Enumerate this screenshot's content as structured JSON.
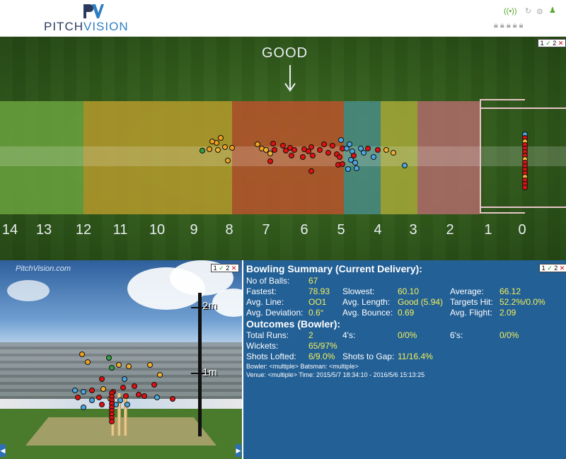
{
  "header": {
    "logo_mark": "PV",
    "logo_text_a": "PITCH",
    "logo_text_b": "VISION"
  },
  "pitch_view": {
    "good_label": "GOOD",
    "length_numbers": [
      "14",
      "13",
      "12",
      "11",
      "10",
      "9",
      "8",
      "7",
      "6",
      "5",
      "4",
      "3",
      "2",
      "1",
      "0"
    ],
    "zone_colors": [
      "#6aa23d",
      "#b59a2c",
      "#b8532c",
      "#4a8c86",
      "#a6a838",
      "#b06b6a"
    ],
    "view_controls": [
      "1",
      "✓",
      "2",
      "✕"
    ]
  },
  "stumps_view": {
    "watermark": "PitchVision.com",
    "height_labels": [
      "2m",
      "1m"
    ],
    "view_controls": [
      "1",
      "✓",
      "2",
      "✕"
    ]
  },
  "summary": {
    "title": "Bowling Summary (Current Delivery):",
    "view_controls": [
      "1",
      "✓",
      "2",
      "✕"
    ],
    "no_of_balls_label": "No of Balls:",
    "no_of_balls": "67",
    "fastest_label": "Fastest:",
    "fastest": "78.93",
    "slowest_label": "Slowest:",
    "slowest": "60.10",
    "average_label": "Average:",
    "average": "66.12",
    "avg_line_label": "Avg. Line:",
    "avg_line": "OO1",
    "avg_length_label": "Avg. Length:",
    "avg_length": "Good (5.94)",
    "targets_hit_label": "Targets Hit:",
    "targets_hit": "52.2%/0.0%",
    "avg_deviation_label": "Avg. Deviation:",
    "avg_deviation": "0.6°",
    "avg_bounce_label": "Avg. Bounce:",
    "avg_bounce": "0.69",
    "avg_flight_label": "Avg. Flight:",
    "avg_flight": "2.09",
    "outcomes_title": "Outcomes (Bowler):",
    "total_runs_label": "Total Runs:",
    "total_runs": "2",
    "fours_label": "4's:",
    "fours": "0/0%",
    "sixes_label": "6's:",
    "sixes": "0/0%",
    "wickets_label": "Wickets:",
    "wickets": "65/97%",
    "shots_lofted_label": "Shots Lofted:",
    "shots_lofted": "6/9.0%",
    "shots_to_gap_label": "Shots to Gap:",
    "shots_to_gap": "11/16.4%",
    "bowler_line": "Bowler: <multiple> Batsman: <multiple>",
    "venue_line": "Venue: <multiple> Time: 2015/5/7 18:34:10 - 2016/5/6 15:13:25"
  }
}
